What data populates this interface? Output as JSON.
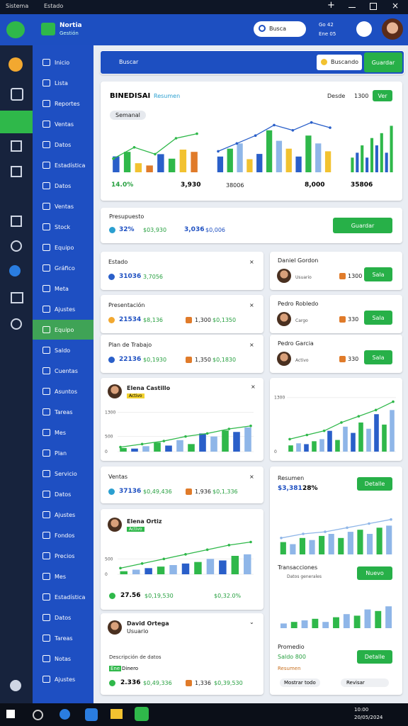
{
  "titlebar": {
    "left": [
      "Sistema",
      "Estado"
    ]
  },
  "header": {
    "brand": "Nortia",
    "brand_sub": "Gestión",
    "search": "Busca",
    "status": "Go 42",
    "status2": "Ene 05"
  },
  "toolbar": {
    "placeholder": "Buscar",
    "filter": "Buscando",
    "button": "Guardar"
  },
  "sidebar": {
    "items": [
      "Inicio",
      "Lista",
      "Reportes",
      "Ventas",
      "Datos",
      "Estadística",
      "Datos",
      "Ventas",
      "Stock",
      "Equipo",
      "Gráfico",
      "Meta",
      "Ajustes",
      "Equipo",
      "Saldo",
      "Cuentas",
      "Asuntos",
      "Tareas",
      "Mes",
      "Plan",
      "Servicio",
      "Datos",
      "Ajustes",
      "Fondos",
      "Precios",
      "Mes",
      "Estadística",
      "Datos",
      "Tareas",
      "Notas",
      "Ajustes"
    ],
    "active": 13
  },
  "overview": {
    "title": "BINEDISAI",
    "subtitle": "Resumen",
    "date_label": "Desde",
    "date": "1300",
    "button": "Ver",
    "tag": "Semanal",
    "m1": "14.0%",
    "m2": "3,930",
    "m3": "38006",
    "m4": "8,000",
    "m5": "35806"
  },
  "budget": {
    "title": "Presupuesto",
    "v1": "32%",
    "v2": "$03,930",
    "v3": "3,036",
    "v4": "$0,006",
    "button": "Guardar"
  },
  "rows": [
    {
      "title": "Estado",
      "v1": "31036",
      "v2": "3,7056"
    },
    {
      "title": "Presentación",
      "v1": "21534",
      "v2": "$8,136",
      "v3": "1,300",
      "v4": "$0,1350"
    },
    {
      "title": "Plan de Trabajo",
      "v1": "22136",
      "v2": "$0,1930",
      "v3": "1,350",
      "v4": "$0,1830"
    },
    {
      "title": "Ventas",
      "v1": "37136",
      "v2": "$0,49,436",
      "v3": "1,936",
      "v4": "$0,1,336"
    }
  ],
  "people": [
    {
      "name": "Daniel Gordon",
      "role": "Usuario",
      "v": "1300",
      "button": "Sala"
    },
    {
      "name": "Pedro Robledo",
      "role": "Cargo",
      "v": "330",
      "button": "Sala"
    },
    {
      "name": "Pedro Garcia",
      "role": "Activo",
      "v": "330",
      "button": "Sala"
    }
  ],
  "chart_card": {
    "name": "Elena Castillo",
    "tag": "Activo"
  },
  "chart_card2": {
    "name": "Elena Ortiz",
    "tag": "Activo",
    "v1": "27.56",
    "v2": "$0,19,530",
    "v3": "$0,32.0%"
  },
  "person_card": {
    "name": "David Ortega",
    "role": "Usuario",
    "desc": "Descripción de datos",
    "l1": "Ene",
    "l2": "Dinero",
    "v1": "2.336",
    "v2": "$0,49,336",
    "v3": "1,336",
    "v4": "$0,39,530"
  },
  "summary": {
    "title": "Resumen",
    "v1": "$3,381",
    "v2": "28%",
    "button": "Detalle",
    "sub": "Transacciones",
    "sub_note": "Datos generales",
    "button2": "Nuevo",
    "avg": "Promedio",
    "avg_v": "Saldo 800",
    "button3": "Detalle",
    "tail": "Resumen",
    "pill1": "Mostrar todo",
    "pill2": "Revisar"
  },
  "taskbar": {
    "time": "10:00",
    "date": "20/05/2024"
  },
  "charts": [
    {
      "bars": [
        35,
        45,
        20,
        15,
        40,
        30,
        50,
        45
      ],
      "colors": [
        "#2a5fc9",
        "#2fb84a",
        "#f2c230",
        "#e07b2a"
      ],
      "line": [
        30,
        55,
        40,
        75,
        85
      ],
      "line_color": "#2fb84a",
      "ylim": [
        0,
        100
      ]
    },
    {
      "bars": [
        30,
        45,
        55,
        25,
        35,
        80,
        60,
        45,
        30,
        70,
        55,
        40
      ],
      "colors": [
        "#2a5fc9",
        "#2fb84a",
        "#8fb6e8",
        "#f2c230"
      ],
      "line": [
        40,
        55,
        70,
        90,
        80,
        95,
        85
      ],
      "line_color": "#2a5fc9",
      "ylim": [
        0,
        100
      ]
    },
    {
      "bars": [
        30,
        40,
        55,
        30,
        70,
        55,
        80,
        40,
        95
      ],
      "colors": [
        "#2fb84a",
        "#2a5fc9"
      ],
      "ylim": [
        0,
        100
      ]
    },
    {
      "bars": [
        120,
        100,
        180,
        300,
        200,
        380,
        250,
        600,
        500,
        700,
        650,
        800
      ],
      "colors": [
        "#2fb84a",
        "#2a5fc9",
        "#8fb6e8"
      ],
      "line": [
        150,
        250,
        350,
        500,
        600,
        750,
        850
      ],
      "line_color": "#2fb84a",
      "ylim": [
        0,
        1500
      ],
      "yticks": [
        0,
        500,
        1300
      ]
    },
    {
      "bars": [
        150,
        200,
        180,
        250,
        300,
        500,
        280,
        600,
        450,
        700,
        550,
        900,
        650,
        1000
      ],
      "colors": [
        "#2fb84a",
        "#8fb6e8",
        "#2a5fc9"
      ],
      "line": [
        300,
        400,
        500,
        700,
        850,
        1000,
        1200
      ],
      "line_color": "#2fb84a",
      "ylim": [
        0,
        1500
      ],
      "yticks": [
        0,
        1300
      ]
    },
    {
      "bars": [
        100,
        150,
        200,
        250,
        300,
        350,
        400,
        500,
        450,
        600,
        650
      ],
      "colors": [
        "#2fb84a",
        "#8fb6e8",
        "#2a5fc9"
      ],
      "line": [
        200,
        350,
        500,
        650,
        800,
        950,
        1050
      ],
      "line_color": "#2fb84a",
      "ylim": [
        0,
        1200
      ],
      "yticks": [
        0,
        500
      ]
    },
    {
      "bars": [
        30,
        25,
        40,
        35,
        45,
        50,
        40,
        55,
        60,
        50,
        65,
        70
      ],
      "colors": [
        "#2fb84a",
        "#8fb6e8"
      ],
      "line": [
        40,
        50,
        55,
        65,
        75,
        85
      ],
      "line_color": "#8fb6e8",
      "ylim": [
        0,
        100
      ]
    },
    {
      "bars": [
        15,
        20,
        25,
        30,
        20,
        35,
        45,
        40,
        60,
        55,
        70
      ],
      "colors": [
        "#8fb6e8",
        "#2fb84a"
      ],
      "ylim": [
        0,
        100
      ]
    }
  ]
}
